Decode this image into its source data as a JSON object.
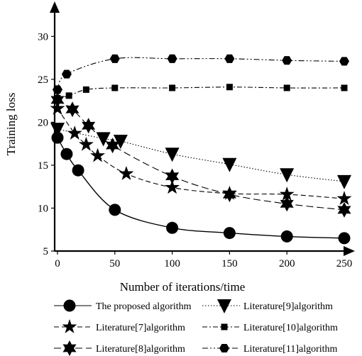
{
  "chart_data": {
    "type": "line",
    "title": "",
    "xlabel": "Number of iterations/time",
    "ylabel": "Training loss",
    "xlim": [
      0,
      250
    ],
    "ylim": [
      5,
      33
    ],
    "x_ticks": [
      "0",
      "50",
      "100",
      "150",
      "200",
      "250"
    ],
    "y_ticks": [
      "5",
      "10",
      "15",
      "20",
      "25",
      "30"
    ],
    "grid": false,
    "legend_position": "bottom",
    "series": [
      {
        "name": "The proposed algorithm",
        "marker": "circle",
        "line_style": "solid",
        "x": [
          0,
          8,
          18,
          50,
          100,
          150,
          200,
          250
        ],
        "y": [
          18.2,
          16.3,
          14.4,
          9.8,
          7.7,
          7.1,
          6.7,
          6.5
        ]
      },
      {
        "name": "Literature[9]algorithm",
        "marker": "triangle-down",
        "line_style": "dotted",
        "x": [
          0,
          40,
          55,
          100,
          150,
          200,
          250
        ],
        "y": [
          19.2,
          18.1,
          17.8,
          16.3,
          15.1,
          13.9,
          13.1
        ]
      },
      {
        "name": "Literature[7]algorithm",
        "marker": "star",
        "line_style": "dashed",
        "x": [
          0,
          15,
          25,
          35,
          60,
          100,
          150,
          200,
          250
        ],
        "y": [
          21.6,
          18.7,
          17.4,
          16.1,
          14.0,
          12.4,
          11.7,
          11.6,
          11.1
        ]
      },
      {
        "name": "Literature[10]algorithm",
        "marker": "square",
        "line_style": "dash-dot",
        "x": [
          0,
          10,
          25,
          50,
          100,
          150,
          200,
          250
        ],
        "y": [
          22.8,
          23.1,
          23.8,
          24.0,
          24.0,
          24.1,
          24.0,
          24.0
        ]
      },
      {
        "name": "Literature[8]algorithm",
        "marker": "six-point-star",
        "line_style": "long-dash",
        "x": [
          0,
          13,
          27,
          48,
          100,
          150,
          200,
          250
        ],
        "y": [
          22.6,
          21.5,
          19.6,
          17.3,
          13.7,
          11.6,
          10.5,
          9.8
        ]
      },
      {
        "name": "Literature[11]algorithm",
        "marker": "hexagon",
        "line_style": "dash-dot-dot",
        "x": [
          0,
          8,
          50,
          100,
          150,
          200,
          250
        ],
        "y": [
          23.8,
          25.6,
          27.4,
          27.4,
          27.4,
          27.2,
          27.1
        ]
      }
    ]
  }
}
